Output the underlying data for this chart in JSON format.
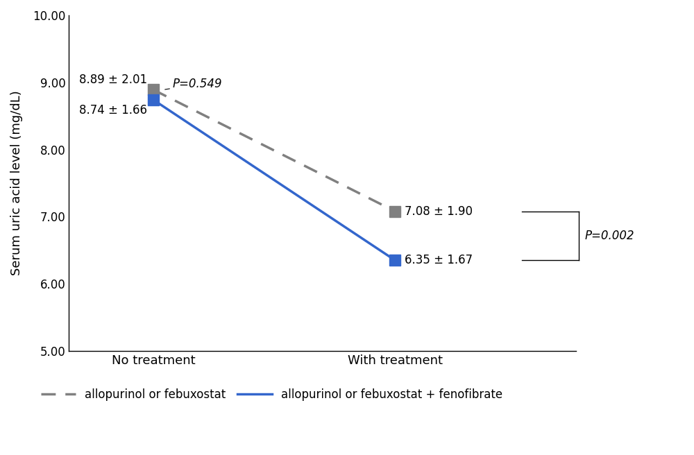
{
  "x_positions": [
    1,
    3
  ],
  "x_labels": [
    "No treatment",
    "With treatment"
  ],
  "series1_values": [
    8.89,
    7.08
  ],
  "series1_label_left": "8.89 ± 2.01",
  "series1_label_right": "7.08 ± 1.90",
  "series1_color": "#808080",
  "series2_values": [
    8.74,
    6.35
  ],
  "series2_label_left": "8.74 ± 1.66",
  "series2_label_right": "6.35 ± 1.67",
  "series2_color": "#3366cc",
  "ylabel": "Serum uric acid level (mg/dL)",
  "ylim": [
    5.0,
    10.0
  ],
  "yticks": [
    5.0,
    6.0,
    7.0,
    8.0,
    9.0,
    10.0
  ],
  "ytick_labels": [
    "5.00",
    "6.00",
    "7.00",
    "8.00",
    "9.00",
    "10.00"
  ],
  "p_value_top": "P=0.549",
  "p_value_right": "P=0.002",
  "legend_label1": "allopurinol or febuxostat",
  "legend_label2": "allopurinol or febuxostat + fenofibrate",
  "marker_size": 12,
  "line_width": 2.5,
  "background_color": "#ffffff",
  "font_size": 12,
  "annotation_fontsize": 12
}
